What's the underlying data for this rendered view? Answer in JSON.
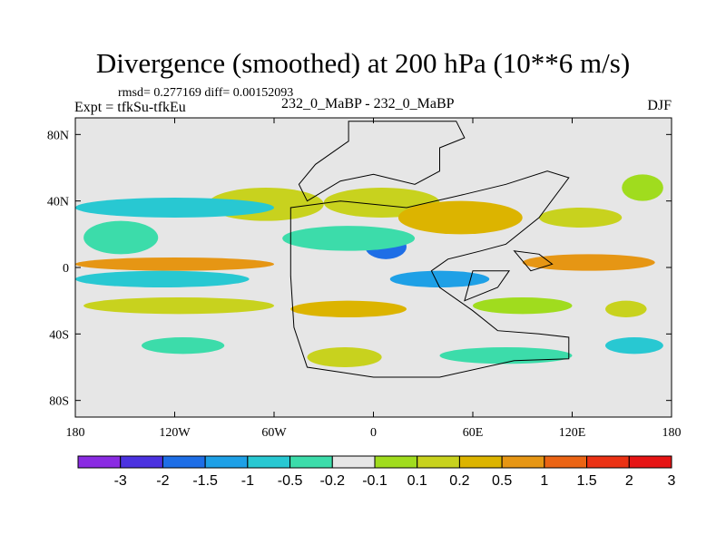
{
  "page": {
    "title": "Divergence (smoothed) at 200 hPa (10**6 m/s)",
    "stats": "rmsd= 0.277169 diff= 0.00152093",
    "expt": "Expt = tfkSu-tfkEu",
    "center_label": "232_0_MaBP - 232_0_MaBP",
    "season": "DJF"
  },
  "chart_data": {
    "type": "heatmap",
    "title": "Divergence (smoothed) at 200 hPa (10**6 m/s)",
    "xlabel": "",
    "ylabel": "",
    "xlim": [
      -180,
      180
    ],
    "ylim": [
      -90,
      90
    ],
    "x_ticks": [
      {
        "value": -180,
        "label": "180"
      },
      {
        "value": -120,
        "label": "120W"
      },
      {
        "value": -60,
        "label": "60W"
      },
      {
        "value": 0,
        "label": "0"
      },
      {
        "value": 60,
        "label": "60E"
      },
      {
        "value": 120,
        "label": "120E"
      },
      {
        "value": 180,
        "label": "180"
      }
    ],
    "y_ticks": [
      {
        "value": 80,
        "label": "80N"
      },
      {
        "value": 40,
        "label": "40N"
      },
      {
        "value": 0,
        "label": "0"
      },
      {
        "value": -40,
        "label": "40S"
      },
      {
        "value": -80,
        "label": "80S"
      }
    ],
    "colorbar": {
      "colors": [
        "#8a2be2",
        "#4b32e0",
        "#1e6ee6",
        "#1ea0e6",
        "#28c8d2",
        "#3cdcaa",
        "#e6e6e6",
        "#a0dc1e",
        "#c8d21e",
        "#dcb400",
        "#e69614",
        "#eb6414",
        "#eb3214",
        "#e61414"
      ],
      "labels": [
        "-3",
        "-2",
        "-1.5",
        "-1",
        "-0.5",
        "-0.2",
        "-0.1",
        "0.1",
        "0.2",
        "0.5",
        "1",
        "1.5",
        "2",
        "3"
      ]
    },
    "background_color": "#e6e6e6",
    "regions": [
      {
        "lon": [
          -175,
          -130
        ],
        "lat": [
          28,
          8
        ],
        "level": 5
      },
      {
        "lon": [
          -100,
          -30
        ],
        "lat": [
          48,
          28
        ],
        "level": 8
      },
      {
        "lon": [
          -30,
          40
        ],
        "lat": [
          48,
          30
        ],
        "level": 8
      },
      {
        "lon": [
          -180,
          -60
        ],
        "lat": [
          42,
          30
        ],
        "level": 4
      },
      {
        "lon": [
          -5,
          20
        ],
        "lat": [
          20,
          5
        ],
        "level": 2
      },
      {
        "lon": [
          -55,
          25
        ],
        "lat": [
          25,
          10
        ],
        "level": 5
      },
      {
        "lon": [
          -180,
          -60
        ],
        "lat": [
          6,
          -2
        ],
        "level": 10
      },
      {
        "lon": [
          90,
          170
        ],
        "lat": [
          8,
          -2
        ],
        "level": 10
      },
      {
        "lon": [
          -180,
          -75
        ],
        "lat": [
          -2,
          -12
        ],
        "level": 4
      },
      {
        "lon": [
          10,
          70
        ],
        "lat": [
          -2,
          -12
        ],
        "level": 3
      },
      {
        "lon": [
          15,
          90
        ],
        "lat": [
          40,
          20
        ],
        "level": 9
      },
      {
        "lon": [
          100,
          150
        ],
        "lat": [
          36,
          24
        ],
        "level": 8
      },
      {
        "lon": [
          150,
          175
        ],
        "lat": [
          56,
          40
        ],
        "level": 7
      },
      {
        "lon": [
          -175,
          -60
        ],
        "lat": [
          -18,
          -28
        ],
        "level": 8
      },
      {
        "lon": [
          -50,
          20
        ],
        "lat": [
          -20,
          -30
        ],
        "level": 9
      },
      {
        "lon": [
          60,
          120
        ],
        "lat": [
          -18,
          -28
        ],
        "level": 7
      },
      {
        "lon": [
          -140,
          -90
        ],
        "lat": [
          -42,
          -52
        ],
        "level": 5
      },
      {
        "lon": [
          -40,
          5
        ],
        "lat": [
          -48,
          -60
        ],
        "level": 8
      },
      {
        "lon": [
          40,
          120
        ],
        "lat": [
          -48,
          -58
        ],
        "level": 5
      },
      {
        "lon": [
          140,
          175
        ],
        "lat": [
          -42,
          -52
        ],
        "level": 4
      },
      {
        "lon": [
          140,
          165
        ],
        "lat": [
          -20,
          -30
        ],
        "level": 8
      }
    ]
  }
}
